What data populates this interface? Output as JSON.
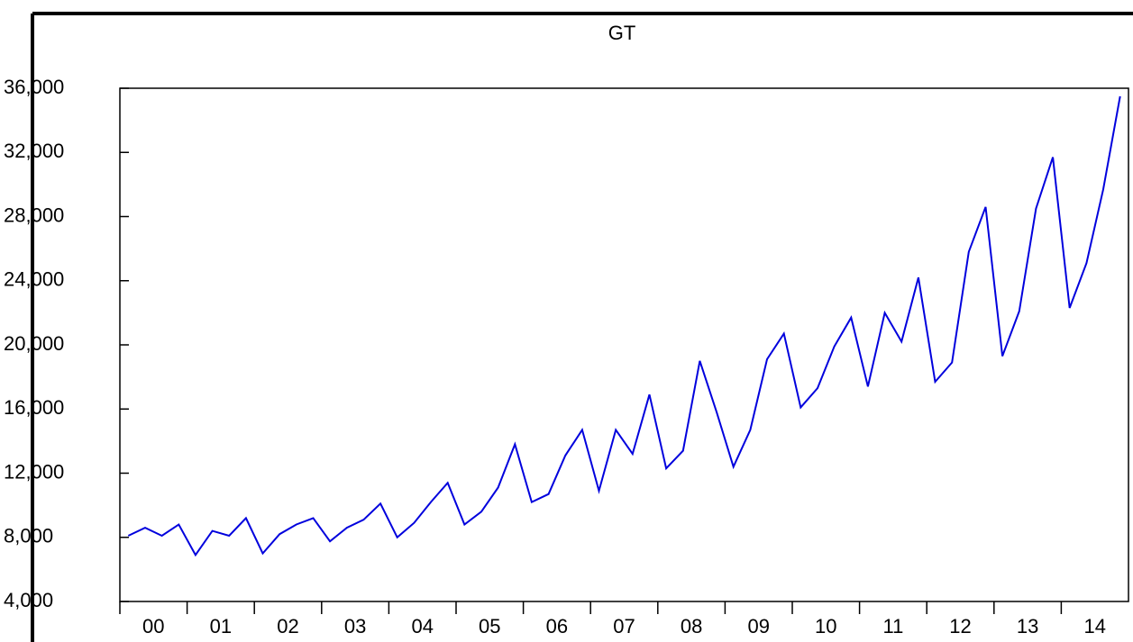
{
  "chart_data": {
    "type": "line",
    "title": "GT",
    "categories": [
      "00",
      null,
      null,
      null,
      "01",
      null,
      null,
      null,
      "02",
      null,
      null,
      null,
      "03",
      null,
      null,
      null,
      "04",
      null,
      null,
      null,
      "05",
      null,
      null,
      null,
      "06",
      null,
      null,
      null,
      "07",
      null,
      null,
      null,
      "08",
      null,
      null,
      null,
      "09",
      null,
      null,
      null,
      "10",
      null,
      null,
      null,
      "11",
      null,
      null,
      null,
      "12",
      null,
      null,
      null,
      "13",
      null,
      null,
      null,
      "14",
      null,
      null,
      null
    ],
    "series": [
      {
        "name": "GT",
        "color": "#0000dd",
        "values": [
          8100,
          8600,
          8100,
          8800,
          6900,
          8400,
          8100,
          9200,
          7000,
          8200,
          8800,
          9200,
          7750,
          8600,
          9100,
          10100,
          8000,
          8900,
          10200,
          11400,
          8800,
          9600,
          11100,
          13800,
          10200,
          10700,
          13100,
          14700,
          10900,
          14700,
          13200,
          16900,
          12300,
          13400,
          19000,
          15800,
          12400,
          14700,
          19100,
          20700,
          16100,
          17300,
          19900,
          21700,
          17400,
          22000,
          20200,
          24200,
          17700,
          18900,
          25800,
          28600,
          19300,
          22100,
          28500,
          31700,
          22300,
          25100,
          29700,
          35500
        ]
      }
    ],
    "ylim": [
      4000,
      36000
    ],
    "yticks": [
      {
        "value": 4000,
        "label": "4,000"
      },
      {
        "value": 8000,
        "label": "8,000"
      },
      {
        "value": 12000,
        "label": "12,000"
      },
      {
        "value": 16000,
        "label": "16,000"
      },
      {
        "value": 20000,
        "label": "20,000"
      },
      {
        "value": 24000,
        "label": "24,000"
      },
      {
        "value": 28000,
        "label": "28,000"
      },
      {
        "value": 32000,
        "label": "32,000"
      },
      {
        "value": 36000,
        "label": "36,000"
      }
    ],
    "grid": false
  }
}
